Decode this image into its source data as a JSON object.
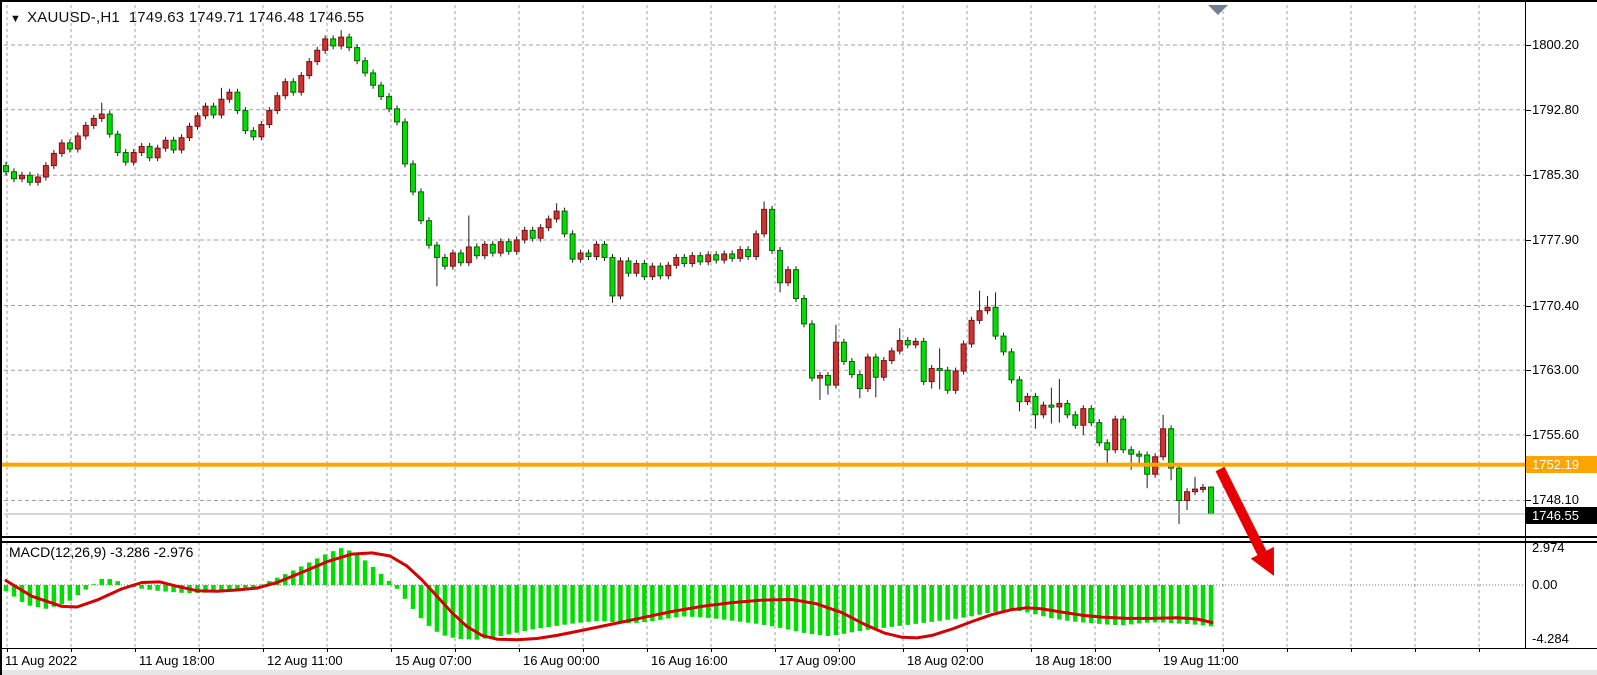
{
  "ui": {
    "title": {
      "marker": "▼",
      "symbol": "XAUUSD-,H1",
      "ohlc_text": "1749.63 1749.71 1746.48 1746.55"
    },
    "badges": {
      "line_badge": "1752.19",
      "bid_badge": "1746.55"
    },
    "macd_title": {
      "name": "MACD(12,26,9)",
      "values_text": " -3.286 -2.976"
    }
  },
  "colors": {
    "background": "#FFFFFF",
    "grid": "#A0A0A0",
    "bull_fill": "#CD3333",
    "bull_stroke": "#7A1010",
    "bear_fill": "#00DD00",
    "bear_stroke": "#006600",
    "wick": "#1A1A1A",
    "histogram": "#00DD00",
    "signal_line": "#D40000",
    "orange_level": "#FFA500",
    "bid_line": "#A8ADB3",
    "arrow": "#E60000",
    "shift_marker": "#708090",
    "axis_text": "#000000",
    "badge_text": "#FFFFFF"
  },
  "chart_data": {
    "type": "candlestick",
    "symbol": "XAUUSD-",
    "timeframe": "H1",
    "title": "XAUUSD-,H1 1749.63 1749.71 1746.48 1746.55",
    "last_candle_ohlc": {
      "open": 1749.63,
      "high": 1749.71,
      "low": 1746.48,
      "close": 1746.55
    },
    "price_axis_ticks": [
      "1800.20",
      "1792.80",
      "1785.30",
      "1777.90",
      "1770.40",
      "1763.00",
      "1755.60",
      "1748.10"
    ],
    "price_axis_values": [
      1800.2,
      1792.8,
      1785.3,
      1777.9,
      1770.4,
      1763.0,
      1755.6,
      1748.1
    ],
    "time_axis_labels": [
      "11 Aug 2022",
      "11 Aug 18:00",
      "12 Aug 11:00",
      "15 Aug 07:00",
      "16 Aug 00:00",
      "16 Aug 16:00",
      "17 Aug 09:00",
      "18 Aug 02:00",
      "18 Aug 18:00",
      "19 Aug 11:00"
    ],
    "horizontal_line": {
      "price": 1752.19,
      "label": "1752.19",
      "color": "#FFA500"
    },
    "bid_line": {
      "price": 1746.55,
      "label": "1746.55"
    },
    "arrow_annotation": {
      "meaning": "breakdown below 1752.19 support, pointing down",
      "color": "#E60000"
    },
    "candles": {
      "note": "open of each candle = close of previous candle unless overridden; high/low = body extreme +/- default_wick unless overridden",
      "first_open": 1786.4,
      "default_wick": 0.4,
      "closes": [
        1785.7,
        1784.9,
        1785.3,
        1784.5,
        1785.1,
        1786.4,
        1787.8,
        1789.0,
        1788.3,
        1789.8,
        1791.0,
        1791.8,
        1792.3,
        1790.0,
        1787.9,
        1786.8,
        1787.9,
        1788.6,
        1787.3,
        1788.4,
        1789.3,
        1788.2,
        1789.6,
        1790.9,
        1792.1,
        1793.2,
        1792.2,
        1794.0,
        1794.8,
        1792.7,
        1790.4,
        1789.7,
        1791.1,
        1792.7,
        1794.4,
        1796.0,
        1794.8,
        1796.7,
        1798.3,
        1799.6,
        1800.9,
        1800.1,
        1801.1,
        1799.9,
        1798.4,
        1797.0,
        1795.6,
        1794.3,
        1792.9,
        1791.4,
        1786.6,
        1783.4,
        1780.1,
        1777.3,
        1775.9,
        1774.9,
        1776.4,
        1775.3,
        1777.1,
        1776.1,
        1777.4,
        1776.4,
        1777.7,
        1776.6,
        1777.9,
        1779.0,
        1778.1,
        1779.3,
        1780.3,
        1781.2,
        1778.6,
        1775.7,
        1776.4,
        1776.0,
        1777.4,
        1775.9,
        1771.5,
        1775.5,
        1774.1,
        1775.2,
        1773.7,
        1774.9,
        1773.8,
        1775.0,
        1775.9,
        1775.2,
        1776.1,
        1775.4,
        1776.2,
        1775.6,
        1776.3,
        1775.8,
        1776.8,
        1776.0,
        1778.6,
        1781.4,
        1776.7,
        1773.0,
        1774.5,
        1771.2,
        1768.3,
        1762.1,
        1762.4,
        1761.3,
        1766.2,
        1764.0,
        1762.5,
        1760.9,
        1764.5,
        1762.2,
        1764.1,
        1765.2,
        1766.4,
        1765.9,
        1766.3,
        1761.7,
        1763.2,
        1763.0,
        1760.7,
        1762.9,
        1766.0,
        1768.7,
        1769.8,
        1770.2,
        1766.9,
        1765.1,
        1761.9,
        1759.4,
        1760.0,
        1757.9,
        1759.0,
        1758.8,
        1759.2,
        1757.9,
        1756.7,
        1758.6,
        1757.0,
        1754.7,
        1753.9,
        1757.4,
        1753.9,
        1753.4,
        1753.3,
        1751.1,
        1753.1,
        1756.3,
        1751.8,
        1748.1,
        1749.1,
        1749.4,
        1749.6,
        1746.55
      ],
      "overrides": {
        "12": {
          "h": 1793.6
        },
        "27": {
          "h": 1795.3
        },
        "42": {
          "h": 1801.9
        },
        "54": {
          "l": 1772.6
        },
        "58": {
          "h": 1780.7
        },
        "69": {
          "h": 1782.1
        },
        "76": {
          "l": 1770.7
        },
        "95": {
          "h": 1782.3
        },
        "97": {
          "l": 1771.9
        },
        "102": {
          "l": 1759.6
        },
        "103": {
          "l": 1760.2
        },
        "104": {
          "h": 1768.2
        },
        "107": {
          "l": 1759.8
        },
        "109": {
          "l": 1759.9
        },
        "112": {
          "h": 1767.8
        },
        "116": {
          "l": 1760.9
        },
        "117": {
          "h": 1765.5,
          "l": 1760.8
        },
        "122": {
          "h": 1772.1
        },
        "123": {
          "h": 1771.5
        },
        "124": {
          "h": 1771.9
        },
        "127": {
          "l": 1758.3
        },
        "129": {
          "l": 1756.3
        },
        "131": {
          "h": 1761.0,
          "l": 1756.9
        },
        "132": {
          "h": 1762.0,
          "l": 1757.0
        },
        "135": {
          "l": 1755.6
        },
        "138": {
          "l": 1752.4
        },
        "141": {
          "l": 1751.6
        },
        "142": {
          "l": 1752.3
        },
        "143": {
          "l": 1749.5
        },
        "145": {
          "h": 1757.9
        },
        "146": {
          "l": 1750.4
        },
        "147": {
          "l": 1745.4
        },
        "148": {
          "l": 1747.0
        },
        "149": {
          "h": 1750.8
        },
        "151": {
          "o": 1749.63,
          "h": 1749.71,
          "l": 1746.48
        }
      }
    },
    "macd": {
      "label": "MACD(12,26,9)",
      "macd_value": -3.286,
      "signal_value": -2.976,
      "scale_labels": [
        "2.974",
        "0.00",
        "-4.284"
      ],
      "scale_values": [
        2.974,
        0.0,
        -4.284
      ],
      "histogram_points": [
        [
          4,
          -0.5
        ],
        [
          25,
          -1.6
        ],
        [
          45,
          -1.9
        ],
        [
          65,
          -1.4
        ],
        [
          85,
          -0.3
        ],
        [
          100,
          0.5
        ],
        [
          112,
          0.45
        ],
        [
          122,
          0.05
        ],
        [
          135,
          -0.25
        ],
        [
          160,
          -0.5
        ],
        [
          185,
          -0.65
        ],
        [
          210,
          -0.6
        ],
        [
          235,
          -0.45
        ],
        [
          255,
          -0.1
        ],
        [
          270,
          0.4
        ],
        [
          290,
          1.1
        ],
        [
          310,
          1.9
        ],
        [
          325,
          2.5
        ],
        [
          340,
          2.95
        ],
        [
          352,
          2.6
        ],
        [
          364,
          1.9
        ],
        [
          376,
          1.1
        ],
        [
          386,
          0.4
        ],
        [
          394,
          -0.2
        ],
        [
          402,
          -1.0
        ],
        [
          412,
          -2.0
        ],
        [
          422,
          -2.9
        ],
        [
          432,
          -3.6
        ],
        [
          445,
          -4.1
        ],
        [
          460,
          -4.3
        ],
        [
          474,
          -4.35
        ],
        [
          488,
          -4.2
        ],
        [
          502,
          -4.0
        ],
        [
          517,
          -3.75
        ],
        [
          532,
          -3.5
        ],
        [
          550,
          -3.3
        ],
        [
          567,
          -3.1
        ],
        [
          582,
          -2.95
        ],
        [
          597,
          -2.85
        ],
        [
          612,
          -2.95
        ],
        [
          624,
          -3.05
        ],
        [
          637,
          -3.0
        ],
        [
          652,
          -2.85
        ],
        [
          667,
          -2.65
        ],
        [
          682,
          -2.5
        ],
        [
          697,
          -2.55
        ],
        [
          712,
          -2.65
        ],
        [
          727,
          -2.8
        ],
        [
          742,
          -2.95
        ],
        [
          757,
          -3.1
        ],
        [
          772,
          -3.3
        ],
        [
          787,
          -3.55
        ],
        [
          802,
          -3.8
        ],
        [
          814,
          -3.95
        ],
        [
          827,
          -4.05
        ],
        [
          840,
          -3.9
        ],
        [
          854,
          -3.7
        ],
        [
          867,
          -3.55
        ],
        [
          882,
          -3.4
        ],
        [
          897,
          -3.25
        ],
        [
          912,
          -3.1
        ],
        [
          927,
          -2.95
        ],
        [
          942,
          -2.8
        ],
        [
          957,
          -2.65
        ],
        [
          972,
          -2.45
        ],
        [
          987,
          -2.2
        ],
        [
          1002,
          -2.05
        ],
        [
          1012,
          -2.0
        ],
        [
          1024,
          -2.15
        ],
        [
          1037,
          -2.4
        ],
        [
          1050,
          -2.65
        ],
        [
          1062,
          -2.8
        ],
        [
          1077,
          -2.95
        ],
        [
          1092,
          -3.05
        ],
        [
          1107,
          -3.15
        ],
        [
          1120,
          -3.2
        ],
        [
          1132,
          -3.1
        ],
        [
          1144,
          -3.0
        ],
        [
          1157,
          -2.95
        ],
        [
          1172,
          -3.05
        ],
        [
          1187,
          -3.1
        ],
        [
          1200,
          -3.2
        ],
        [
          1210,
          -3.286
        ]
      ],
      "signal_points": [
        [
          4,
          0.35
        ],
        [
          30,
          -0.9
        ],
        [
          60,
          -1.7
        ],
        [
          75,
          -1.75
        ],
        [
          95,
          -1.2
        ],
        [
          120,
          -0.3
        ],
        [
          140,
          0.2
        ],
        [
          158,
          0.25
        ],
        [
          175,
          -0.1
        ],
        [
          195,
          -0.45
        ],
        [
          215,
          -0.5
        ],
        [
          235,
          -0.4
        ],
        [
          255,
          -0.25
        ],
        [
          275,
          0.2
        ],
        [
          300,
          1.0
        ],
        [
          325,
          1.85
        ],
        [
          350,
          2.45
        ],
        [
          370,
          2.55
        ],
        [
          388,
          2.3
        ],
        [
          405,
          1.5
        ],
        [
          420,
          0.4
        ],
        [
          435,
          -0.9
        ],
        [
          450,
          -2.2
        ],
        [
          465,
          -3.3
        ],
        [
          480,
          -4.0
        ],
        [
          495,
          -4.3
        ],
        [
          515,
          -4.35
        ],
        [
          535,
          -4.25
        ],
        [
          555,
          -4.0
        ],
        [
          580,
          -3.6
        ],
        [
          610,
          -3.1
        ],
        [
          640,
          -2.6
        ],
        [
          670,
          -2.1
        ],
        [
          700,
          -1.7
        ],
        [
          730,
          -1.4
        ],
        [
          760,
          -1.2
        ],
        [
          790,
          -1.15
        ],
        [
          815,
          -1.5
        ],
        [
          840,
          -2.2
        ],
        [
          862,
          -3.1
        ],
        [
          882,
          -3.8
        ],
        [
          900,
          -4.15
        ],
        [
          915,
          -4.2
        ],
        [
          930,
          -4.0
        ],
        [
          950,
          -3.5
        ],
        [
          970,
          -2.9
        ],
        [
          990,
          -2.35
        ],
        [
          1010,
          -1.95
        ],
        [
          1025,
          -1.8
        ],
        [
          1040,
          -1.9
        ],
        [
          1060,
          -2.15
        ],
        [
          1080,
          -2.4
        ],
        [
          1100,
          -2.55
        ],
        [
          1125,
          -2.65
        ],
        [
          1150,
          -2.65
        ],
        [
          1175,
          -2.6
        ],
        [
          1195,
          -2.7
        ],
        [
          1210,
          -2.976
        ]
      ]
    }
  }
}
